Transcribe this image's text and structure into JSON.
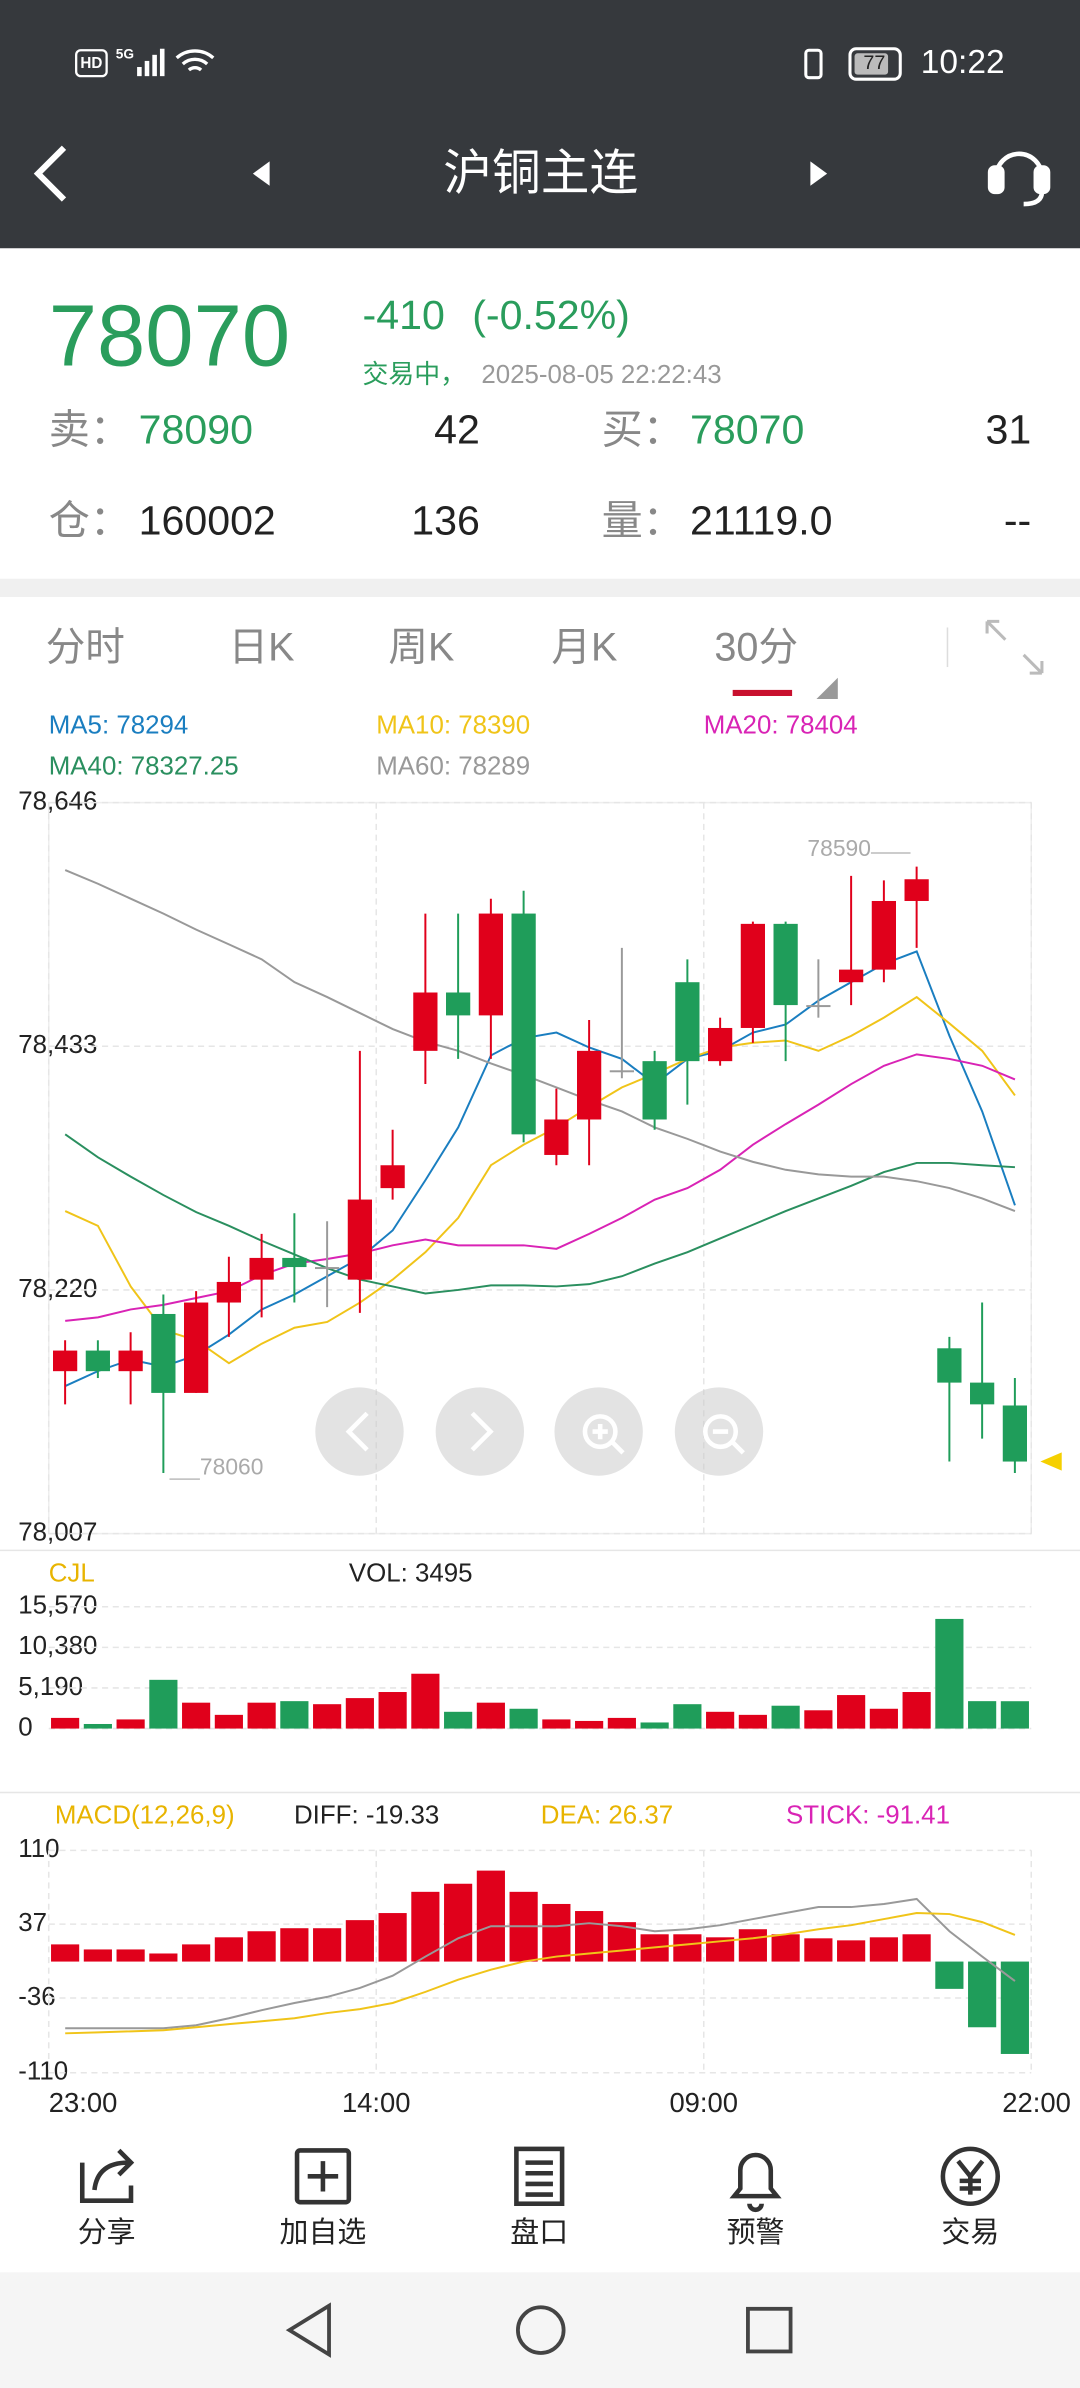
{
  "status_bar": {
    "network": [
      "HD",
      "5G"
    ],
    "battery": "77",
    "time": "10:22"
  },
  "header": {
    "title": "沪铜主连"
  },
  "quote": {
    "price": "78070",
    "change": "-410",
    "change_pct": "(-0.52%)",
    "status": "交易中，",
    "datetime": "2025-08-05 22:22:43",
    "rows": [
      [
        "卖：",
        "78090",
        "42",
        "买：",
        "78070",
        "31"
      ],
      [
        "仓：",
        "160002",
        "136",
        "量：",
        "21119.0",
        "--"
      ]
    ]
  },
  "tabs": [
    "分时",
    "日K",
    "周K",
    "月K",
    "30分"
  ],
  "toolbar": [
    "分享",
    "加自选",
    "盘口",
    "预警",
    "交易"
  ],
  "chart_data": [
    {
      "type": "candlestick",
      "ylim": [
        78007,
        78646
      ],
      "yticks": [
        {
          "value": 78007,
          "label": "78,007"
        },
        {
          "value": 78220,
          "label": "78,220"
        },
        {
          "value": 78433,
          "label": "78,433"
        },
        {
          "value": 78646,
          "label": "78,646"
        }
      ],
      "grid": true,
      "up_color": "#e0001b",
      "down_color": "#1f9d5a",
      "flat_color": "#9a9a9a",
      "open": [
        78149,
        78167,
        78149,
        78199,
        78130,
        78209,
        78229,
        78248,
        78240,
        78229,
        78309,
        78429,
        78480,
        78460,
        78549,
        78338,
        78369,
        78412,
        78420,
        78489,
        78420,
        78449,
        78540,
        78469,
        78489,
        78500,
        78560,
        78169,
        78139,
        78119
      ],
      "high": [
        78176,
        78176,
        78183,
        78216,
        78219,
        78249,
        78269,
        78287,
        78280,
        78429,
        78360,
        78549,
        78549,
        78562,
        78569,
        78396,
        78456,
        78519,
        78429,
        78509,
        78458,
        78542,
        78542,
        78509,
        78582,
        78578,
        78590,
        78179,
        78209,
        78143
      ],
      "low": [
        78120,
        78143,
        78120,
        78060,
        78130,
        78179,
        78196,
        78209,
        78205,
        78200,
        78299,
        78400,
        78422,
        78422,
        78349,
        78329,
        78329,
        78405,
        78360,
        78382,
        78416,
        78436,
        78420,
        78458,
        78469,
        78489,
        78519,
        78070,
        78090,
        78060
      ],
      "close": [
        78167,
        78149,
        78167,
        78130,
        78209,
        78227,
        78248,
        78240,
        78240,
        78299,
        78329,
        78480,
        78460,
        78549,
        78356,
        78369,
        78429,
        78412,
        78369,
        78420,
        78449,
        78540,
        78469,
        78469,
        78500,
        78560,
        78579,
        78139,
        78120,
        78070
      ],
      "annotations": [
        "78590",
        "78060"
      ],
      "series": [
        {
          "label": "MA5: 78294",
          "color": "#1a7ec0",
          "values": [
            78136,
            78149,
            78159,
            78153,
            78163,
            78181,
            78203,
            78216,
            78232,
            78248,
            78272,
            78316,
            78362,
            78425,
            78440,
            78445,
            78432,
            78422,
            78400,
            78422,
            78429,
            78445,
            78452,
            78473,
            78489,
            78505,
            78516,
            78442,
            78376,
            78294
          ]
        },
        {
          "label": "MA10: 78390",
          "color": "#f0c419",
          "values": [
            78289,
            78276,
            78223,
            78185,
            78176,
            78156,
            78173,
            78187,
            78192,
            78209,
            78229,
            78253,
            78283,
            78329,
            78347,
            78362,
            78380,
            78397,
            78409,
            78422,
            78432,
            78436,
            78438,
            78429,
            78442,
            78458,
            78476,
            78453,
            78429,
            78390
          ]
        },
        {
          "label": "MA20: 78404",
          "color": "#d923b5",
          "values": [
            78193,
            78196,
            78203,
            78207,
            78213,
            78219,
            78233,
            78243,
            78247,
            78252,
            78259,
            78264,
            78259,
            78259,
            78259,
            78256,
            78269,
            78283,
            78299,
            78309,
            78325,
            78347,
            78365,
            78382,
            78400,
            78416,
            78426,
            78422,
            78416,
            78404
          ]
        },
        {
          "label": "MA40: 78327.25",
          "color": "#2a8f5f",
          "values": [
            78356,
            78336,
            78319,
            78303,
            78288,
            78276,
            78263,
            78251,
            78239,
            78229,
            78223,
            78217,
            78220,
            78224,
            78224,
            78223,
            78225,
            78232,
            78243,
            78253,
            78265,
            78277,
            78289,
            78300,
            78311,
            78323,
            78331,
            78331,
            78329,
            78327.25
          ]
        },
        {
          "label": "MA60: 78289",
          "color": "#999999",
          "values": [
            78587,
            78575,
            78562,
            78549,
            78535,
            78522,
            78509,
            78489,
            78476,
            78462,
            78448,
            78437,
            78429,
            78418,
            78408,
            78397,
            78386,
            78376,
            78362,
            78352,
            78341,
            78332,
            78325,
            78321,
            78319,
            78319,
            78315,
            78309,
            78300,
            78289
          ]
        }
      ]
    },
    {
      "type": "bar",
      "title": "CJL",
      "label": "VOL: 3495",
      "ylim": [
        0,
        15570
      ],
      "yticks": [
        0,
        {
          "value": 5190,
          "label": "5,190"
        },
        {
          "value": 10380,
          "label": "10,380"
        },
        {
          "value": 15570,
          "label": "15,570"
        }
      ],
      "values": [
        1362,
        584,
        1168,
        6227,
        3308,
        1751,
        3308,
        3503,
        3114,
        3892,
        4670,
        7006,
        2141,
        3308,
        2530,
        1168,
        973,
        1362,
        778,
        3114,
        2141,
        1751,
        2919,
        2335,
        4281,
        2530,
        4670,
        14011,
        3503,
        3495
      ]
    },
    {
      "type": "macd",
      "title": "MACD(12,26,9)",
      "ylim": [
        -110,
        110
      ],
      "yticks": [
        -110,
        -36,
        37,
        110
      ],
      "grid": true,
      "xlim": [
        0,
        30
      ],
      "xticks": [
        {
          "value": 0,
          "label": "23:00"
        },
        {
          "value": 10,
          "label": "14:00"
        },
        {
          "value": 20,
          "label": "09:00"
        },
        {
          "value": 30,
          "label": "22:00"
        }
      ],
      "series": [
        {
          "label": "DIFF: -19.33",
          "kind": "line",
          "color": "#999999",
          "legend_color": "#222222",
          "values": [
            -66,
            -66,
            -66,
            -66,
            -63,
            -56,
            -48,
            -41,
            -35,
            -26,
            -14,
            5,
            23,
            35,
            35,
            35,
            38,
            35,
            30,
            32,
            36,
            42,
            48,
            54,
            54,
            57,
            62,
            30,
            5,
            -19.33
          ]
        },
        {
          "label": "DEA: 26.37",
          "kind": "line",
          "color": "#f0c419",
          "legend_color": "#e8b400",
          "values": [
            -71,
            -70,
            -69,
            -68,
            -65,
            -62,
            -59,
            -56,
            -51,
            -47,
            -41,
            -30,
            -18,
            -8,
            0,
            5,
            8,
            11,
            14,
            17,
            20,
            23,
            27,
            32,
            36,
            42,
            48,
            47,
            39,
            26.37
          ]
        },
        {
          "label": "STICK: -91.41",
          "kind": "bar",
          "color": "#e0001b",
          "neg_color": "#1f9d5a",
          "legend_color": "#d923b5",
          "values": [
            17,
            12,
            12,
            8,
            17,
            24,
            30,
            33,
            33,
            41,
            48,
            69,
            77,
            90,
            69,
            57,
            50,
            39,
            27,
            27,
            24,
            32,
            27,
            23,
            21,
            24,
            27,
            -27,
            -65,
            -91.41
          ]
        }
      ]
    }
  ]
}
